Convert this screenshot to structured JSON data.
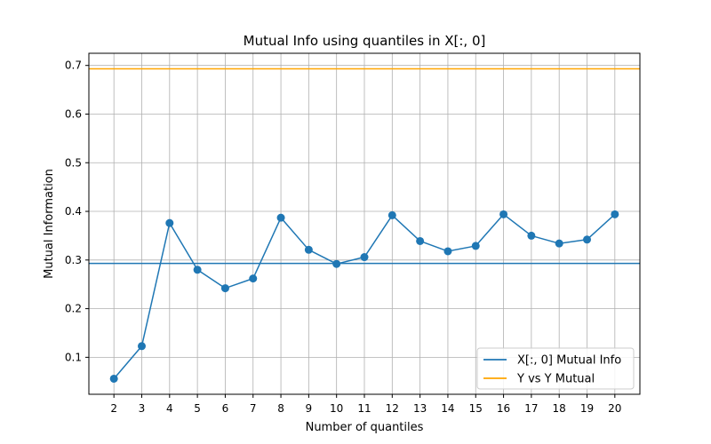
{
  "chart_data": {
    "type": "line",
    "title": "Mutual Info using quantiles in X[:, 0]",
    "xlabel": "Number of quantiles",
    "ylabel": "Mutual Information",
    "x": [
      2,
      3,
      4,
      5,
      6,
      7,
      8,
      9,
      10,
      11,
      12,
      13,
      14,
      15,
      16,
      17,
      18,
      19,
      20
    ],
    "series": [
      {
        "name": "X[:, 0] Mutual Info",
        "color": "#1f77b4",
        "marker": "circle",
        "values": [
          0.056,
          0.123,
          0.376,
          0.28,
          0.242,
          0.262,
          0.387,
          0.321,
          0.292,
          0.306,
          0.392,
          0.339,
          0.318,
          0.329,
          0.394,
          0.35,
          0.334,
          0.342,
          0.394
        ]
      }
    ],
    "hlines": [
      {
        "name": "X[:, 0] Mutual Info",
        "value": 0.293,
        "color": "#1f77b4",
        "in_legend": true
      },
      {
        "name": "Y vs Y Mutual",
        "value": 0.693,
        "color": "#ffa500",
        "in_legend": true
      }
    ],
    "xticks": [
      2,
      3,
      4,
      5,
      6,
      7,
      8,
      9,
      10,
      11,
      12,
      13,
      14,
      15,
      16,
      17,
      18,
      19,
      20
    ],
    "yticks": [
      0.1,
      0.2,
      0.3,
      0.4,
      0.5,
      0.6,
      0.7
    ],
    "ytick_labels": [
      "0.1",
      "0.2",
      "0.3",
      "0.4",
      "0.5",
      "0.6",
      "0.7"
    ],
    "xlim": [
      1.1,
      20.9
    ],
    "ylim": [
      0.024,
      0.725
    ],
    "grid": true,
    "legend_position": "lower-right",
    "legend": [
      "X[:, 0] Mutual Info",
      "Y vs Y Mutual"
    ]
  }
}
